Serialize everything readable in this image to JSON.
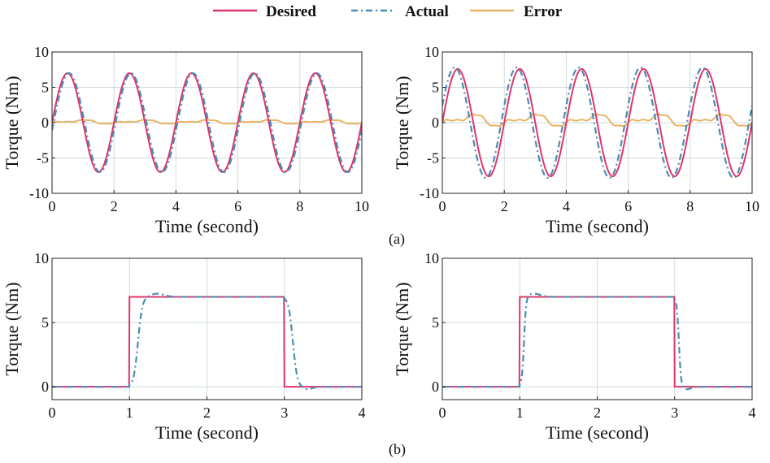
{
  "legend": {
    "desired": "Desired",
    "actual": "Actual",
    "error": "Error"
  },
  "colors": {
    "desired": "#e0356b",
    "actual": "#4a8db5",
    "error": "#e8b464",
    "grid": "#cfdada",
    "axis": "#222222"
  },
  "subfigure_labels": {
    "a": "(a)",
    "b": "(b)"
  },
  "chart_data": [
    {
      "id": "top-left",
      "type": "line",
      "xlabel": "Time (second)",
      "ylabel": "Torque (Nm)",
      "xlim": [
        0,
        10
      ],
      "ylim": [
        -10,
        10
      ],
      "xticks": [
        0,
        2,
        4,
        6,
        8,
        10
      ],
      "yticks": [
        -10,
        -5,
        0,
        5,
        10
      ],
      "series": [
        {
          "name": "Desired",
          "kind": "sine",
          "amplitude": 7,
          "period": 2,
          "lag": 0
        },
        {
          "name": "Actual",
          "kind": "sine",
          "amplitude": 7,
          "period": 2,
          "lag": 0.05
        },
        {
          "name": "Error",
          "kind": "error",
          "amplitude": 0.6,
          "period": 2
        }
      ]
    },
    {
      "id": "top-right",
      "type": "line",
      "xlabel": "Time (second)",
      "ylabel": "Torque (Nm)",
      "xlim": [
        0,
        10
      ],
      "ylim": [
        -10,
        10
      ],
      "xticks": [
        0,
        2,
        4,
        6,
        8,
        10
      ],
      "yticks": [
        -10,
        -5,
        0,
        5,
        10
      ],
      "series": [
        {
          "name": "Desired",
          "kind": "sine",
          "amplitude": 7.6,
          "period": 2,
          "lag": 0
        },
        {
          "name": "Actual",
          "kind": "sine",
          "amplitude": 7.8,
          "period": 2,
          "lag": -0.1
        },
        {
          "name": "Error",
          "kind": "error",
          "amplitude": 1.8,
          "period": 2
        }
      ]
    },
    {
      "id": "bottom-left",
      "type": "line",
      "xlabel": "Time (second)",
      "ylabel": "Torque (Nm)",
      "xlim": [
        0,
        4
      ],
      "ylim": [
        -1,
        10
      ],
      "xticks": [
        0,
        1,
        2,
        3,
        4
      ],
      "yticks": [
        0,
        5,
        10
      ],
      "series": [
        {
          "name": "Desired",
          "kind": "step",
          "level": 7,
          "on": 1,
          "off": 3
        },
        {
          "name": "Actual",
          "kind": "step-response",
          "level": 7,
          "on": 1,
          "off": 3,
          "rise": 0.2,
          "fall": 0.2
        }
      ]
    },
    {
      "id": "bottom-right",
      "type": "line",
      "xlabel": "Time (second)",
      "ylabel": "Torque (Nm)",
      "xlim": [
        0,
        4
      ],
      "ylim": [
        -1,
        10
      ],
      "xticks": [
        0,
        1,
        2,
        3,
        4
      ],
      "yticks": [
        0,
        5,
        10
      ],
      "series": [
        {
          "name": "Desired",
          "kind": "step",
          "level": 7,
          "on": 1,
          "off": 3
        },
        {
          "name": "Actual",
          "kind": "step-response",
          "level": 7,
          "on": 1,
          "off": 3,
          "rise": 0.1,
          "fall": 0.1
        }
      ]
    }
  ]
}
